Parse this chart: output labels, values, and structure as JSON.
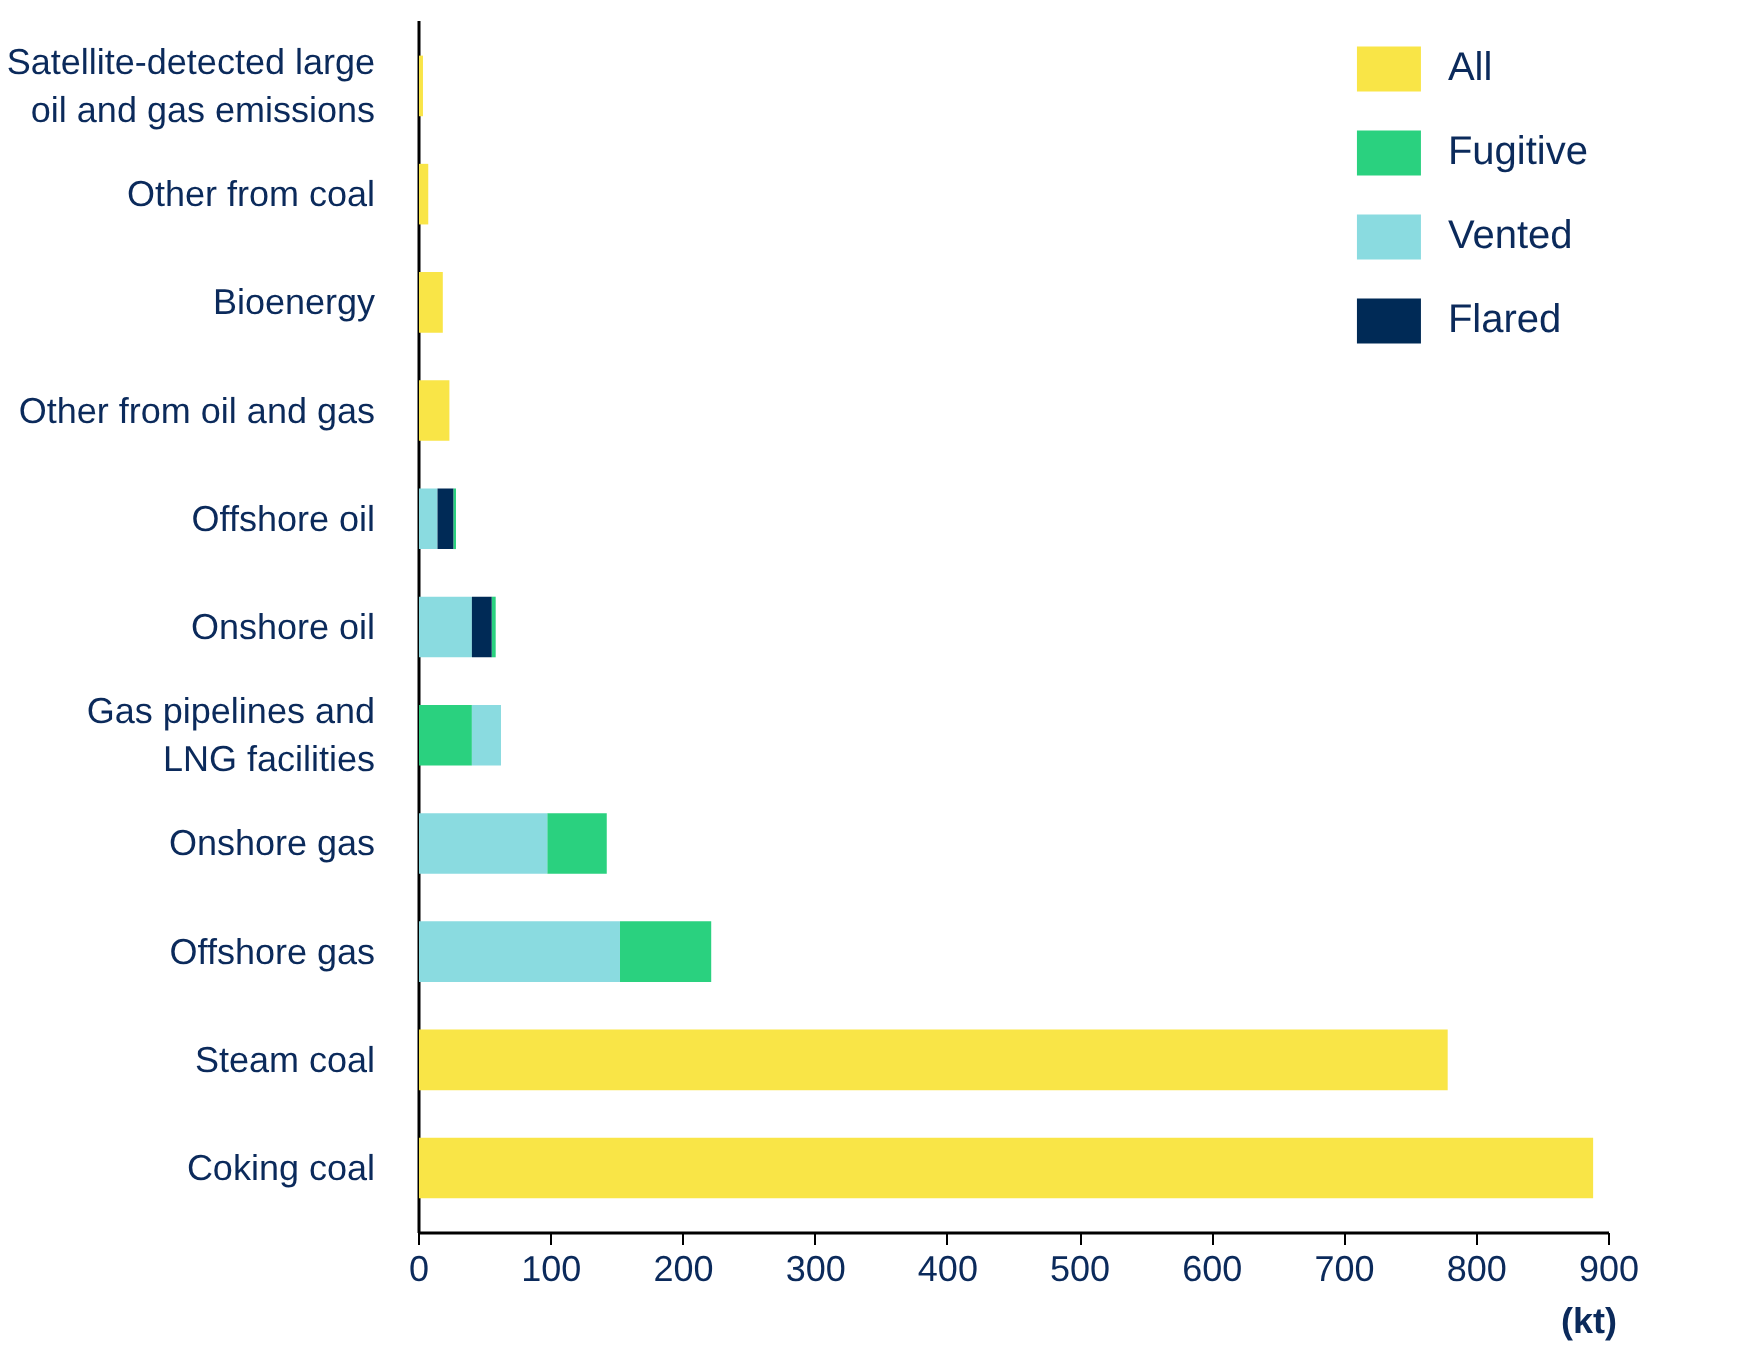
{
  "chart_data": {
    "type": "bar",
    "orientation": "horizontal",
    "xlabel": "(kt)",
    "categories": [
      "Satellite-detected large\noil and gas emissions",
      "Other from coal",
      "Bioenergy",
      "Other from oil and gas",
      "Offshore oil",
      "Onshore oil",
      "Gas pipelines and\nLNG facilities",
      "Onshore gas",
      "Offshore gas",
      "Steam coal",
      "Coking coal"
    ],
    "series": [
      {
        "name": "All",
        "color": "#f9e547",
        "values": [
          3,
          7,
          18,
          23,
          null,
          null,
          null,
          null,
          null,
          778,
          888
        ],
        "base": [
          0,
          0,
          0,
          0,
          null,
          null,
          null,
          null,
          null,
          0,
          0
        ]
      },
      {
        "name": "Fugitive",
        "color": "#2ad17f",
        "values": [
          null,
          null,
          null,
          null,
          2,
          3,
          40,
          45,
          69,
          null,
          null
        ],
        "base": [
          null,
          null,
          null,
          null,
          26,
          55,
          0,
          97,
          152,
          null,
          null
        ]
      },
      {
        "name": "Vented",
        "color": "#8adbe0",
        "values": [
          null,
          null,
          null,
          null,
          14,
          40,
          22,
          97,
          152,
          null,
          null
        ],
        "base": [
          null,
          null,
          null,
          null,
          0,
          0,
          40,
          0,
          0,
          null,
          null
        ]
      },
      {
        "name": "Flared",
        "color": "#002a56",
        "values": [
          null,
          null,
          null,
          null,
          12,
          15,
          null,
          null,
          null,
          null,
          null
        ],
        "base": [
          null,
          null,
          null,
          null,
          14,
          40,
          null,
          null,
          null,
          null,
          null
        ]
      }
    ],
    "xlim": [
      0,
      900
    ],
    "xticks": [
      0,
      100,
      200,
      300,
      400,
      500,
      600,
      700,
      800,
      900
    ],
    "grid": false,
    "legend": "top right"
  }
}
